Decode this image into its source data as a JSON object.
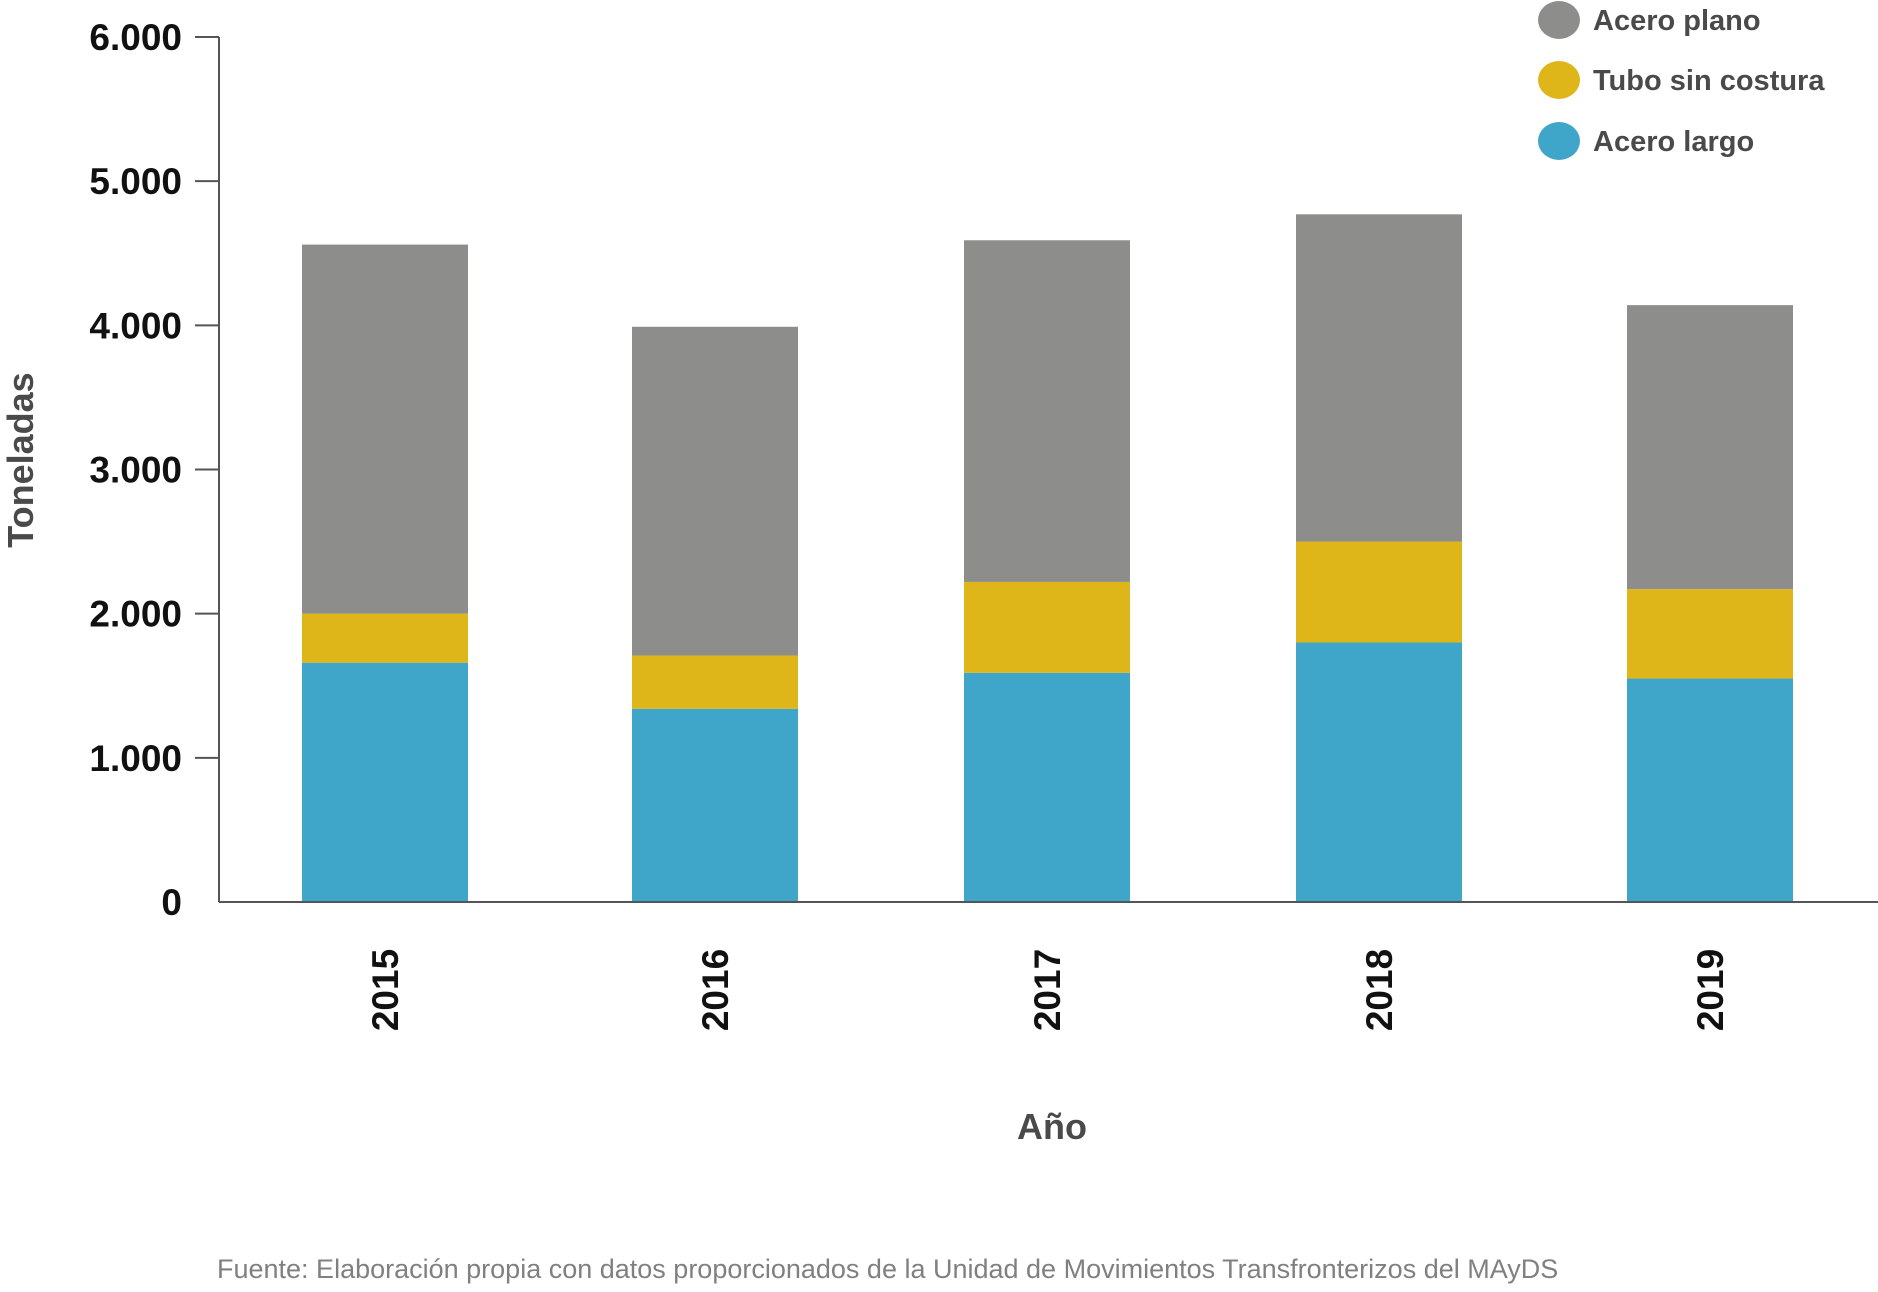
{
  "chart_data": {
    "type": "bar",
    "stacked": true,
    "categories": [
      "2015",
      "2016",
      "2017",
      "2018",
      "2019"
    ],
    "series": [
      {
        "name": "Acero largo",
        "color": "#3fa6c9",
        "values": [
          1660,
          1340,
          1590,
          1800,
          1550
        ]
      },
      {
        "name": "Tubo sin costura",
        "color": "#dfb61a",
        "values": [
          340,
          370,
          630,
          700,
          620
        ]
      },
      {
        "name": "Acero plano",
        "color": "#8d8e8b",
        "values": [
          2560,
          2280,
          2370,
          2270,
          1970
        ]
      }
    ],
    "legend_order": [
      "Acero plano",
      "Tubo sin costura",
      "Acero largo"
    ],
    "legend_position": "top-right",
    "xlabel": "Año",
    "ylabel": "Toneladas",
    "ylim": [
      0,
      6000
    ],
    "yticks": [
      {
        "value": 0,
        "label": "0"
      },
      {
        "value": 1000,
        "label": "1.000"
      },
      {
        "value": 2000,
        "label": "2.000"
      },
      {
        "value": 3000,
        "label": "3.000"
      },
      {
        "value": 4000,
        "label": "4.000"
      },
      {
        "value": 5000,
        "label": "5.000"
      },
      {
        "value": 6000,
        "label": "6.000"
      }
    ],
    "grid": false,
    "source": "Fuente: Elaboración propia con datos proporcionados de la Unidad de Movimientos Transfronterizos del MAyDS"
  },
  "colors": {
    "axis": "#555555",
    "tick_text": "#111111",
    "title_text": "#4a4a4a",
    "source_text": "#808080"
  }
}
